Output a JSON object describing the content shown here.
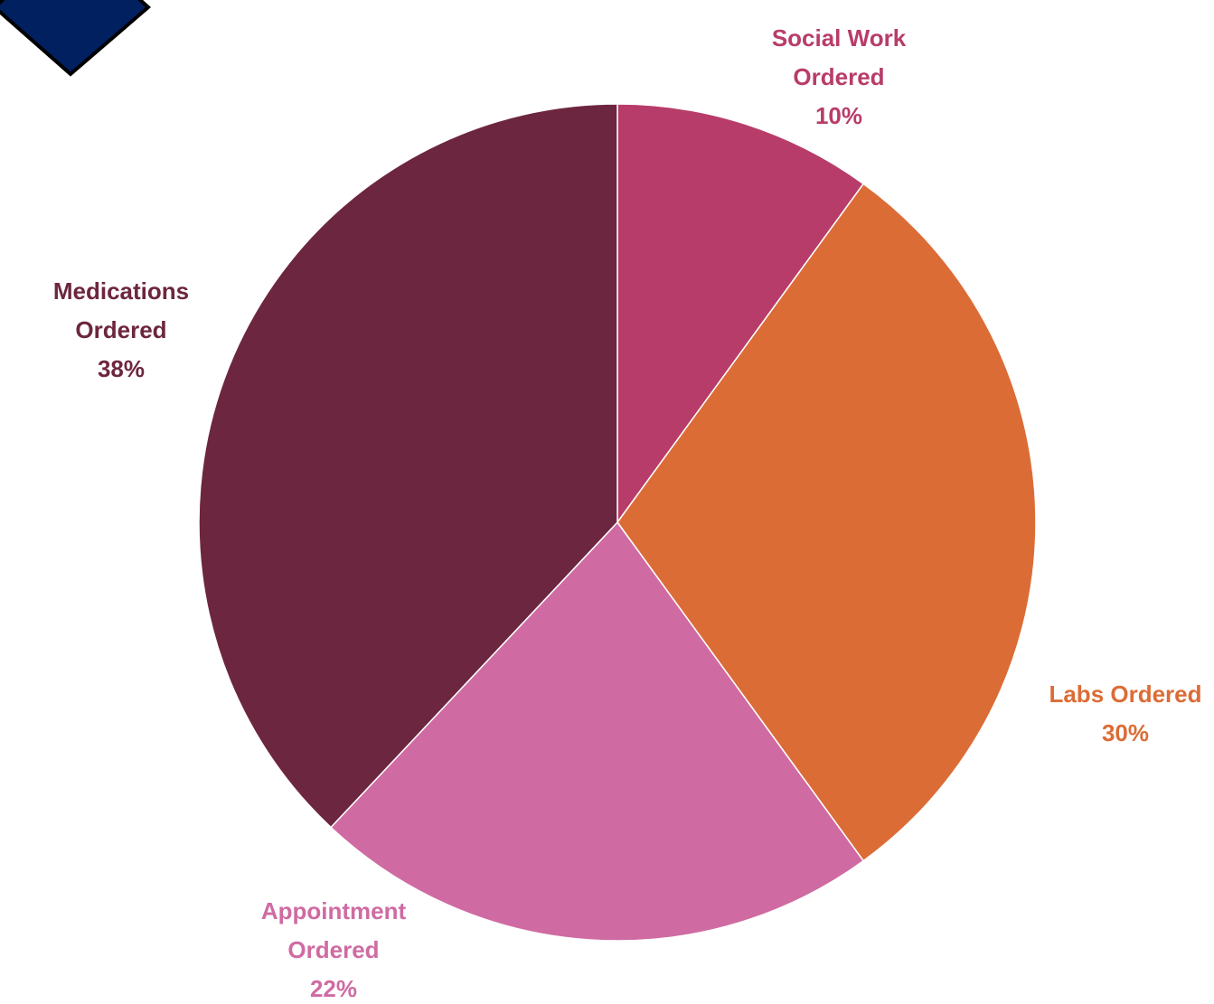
{
  "decoration": {
    "corner_badge_fill": "#002060",
    "corner_badge_outline": "#000000"
  },
  "chart_data": {
    "type": "pie",
    "title": "",
    "start_angle_deg": 0,
    "direction": "clockwise",
    "slices": [
      {
        "name": "Social Work Ordered",
        "label_lines": [
          "Social Work",
          "Ordered"
        ],
        "percent_label": "10%",
        "value": 10,
        "color": "#B83C69"
      },
      {
        "name": "Labs Ordered",
        "label_lines": [
          "Labs Ordered"
        ],
        "percent_label": "30%",
        "value": 30,
        "color": "#DC6C36"
      },
      {
        "name": "Appointment Ordered",
        "label_lines": [
          "Appointment",
          "Ordered"
        ],
        "percent_label": "22%",
        "value": 22,
        "color": "#CF6BA2"
      },
      {
        "name": "Medications Ordered",
        "label_lines": [
          "Medications",
          "Ordered"
        ],
        "percent_label": "38%",
        "value": 38,
        "color": "#6D263F"
      }
    ]
  }
}
